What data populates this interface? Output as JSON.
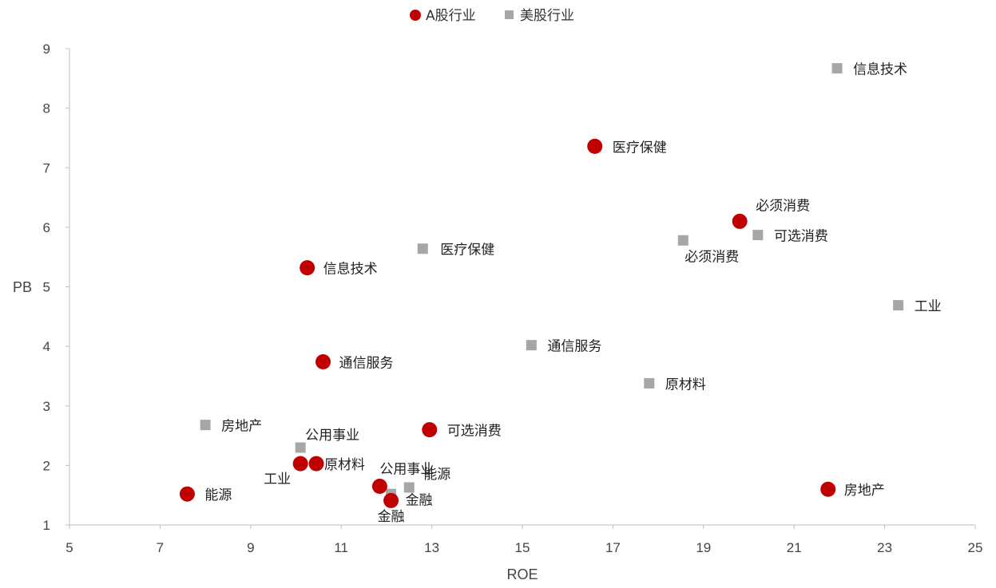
{
  "chart_data": {
    "type": "scatter",
    "title": "",
    "xlabel": "ROE",
    "ylabel": "PB",
    "xlim": [
      5,
      25
    ],
    "ylim": [
      1,
      9
    ],
    "x_ticks": [
      5,
      7,
      9,
      11,
      13,
      15,
      17,
      19,
      21,
      23,
      25
    ],
    "y_ticks": [
      1,
      2,
      3,
      4,
      5,
      6,
      7,
      8,
      9
    ],
    "grid": false,
    "legend_position": "top",
    "series": [
      {
        "name": "A股行业",
        "marker": "circle",
        "color": "#c00000",
        "points": [
          {
            "label": "能源",
            "x": 7.6,
            "y": 1.52
          },
          {
            "label": "工业",
            "x": 10.1,
            "y": 2.03
          },
          {
            "label": "原材料",
            "x": 10.45,
            "y": 2.03
          },
          {
            "label": "公用事业",
            "x": 11.85,
            "y": 1.65
          },
          {
            "label": "金融",
            "x": 12.1,
            "y": 1.41
          },
          {
            "label": "可选消费",
            "x": 12.95,
            "y": 2.6
          },
          {
            "label": "通信服务",
            "x": 10.6,
            "y": 3.74
          },
          {
            "label": "信息技术",
            "x": 10.25,
            "y": 5.32
          },
          {
            "label": "医疗保健",
            "x": 16.6,
            "y": 7.36
          },
          {
            "label": "必须消费",
            "x": 19.8,
            "y": 6.1
          },
          {
            "label": "房地产",
            "x": 21.75,
            "y": 1.6
          }
        ]
      },
      {
        "name": "美股行业",
        "marker": "square",
        "color": "#a6a6a6",
        "points": [
          {
            "label": "房地产",
            "x": 8.0,
            "y": 2.68
          },
          {
            "label": "公用事业",
            "x": 10.1,
            "y": 2.3
          },
          {
            "label": "金融",
            "x": 12.1,
            "y": 1.52
          },
          {
            "label": "能源",
            "x": 12.5,
            "y": 1.63
          },
          {
            "label": "医疗保健",
            "x": 12.8,
            "y": 5.64
          },
          {
            "label": "通信服务",
            "x": 15.2,
            "y": 4.02
          },
          {
            "label": "原材料",
            "x": 17.8,
            "y": 3.38
          },
          {
            "label": "必须消费",
            "x": 18.55,
            "y": 5.78
          },
          {
            "label": "可选消费",
            "x": 20.2,
            "y": 5.87
          },
          {
            "label": "信息技术",
            "x": 21.95,
            "y": 8.67
          },
          {
            "label": "工业",
            "x": 23.3,
            "y": 4.69
          }
        ]
      }
    ]
  }
}
